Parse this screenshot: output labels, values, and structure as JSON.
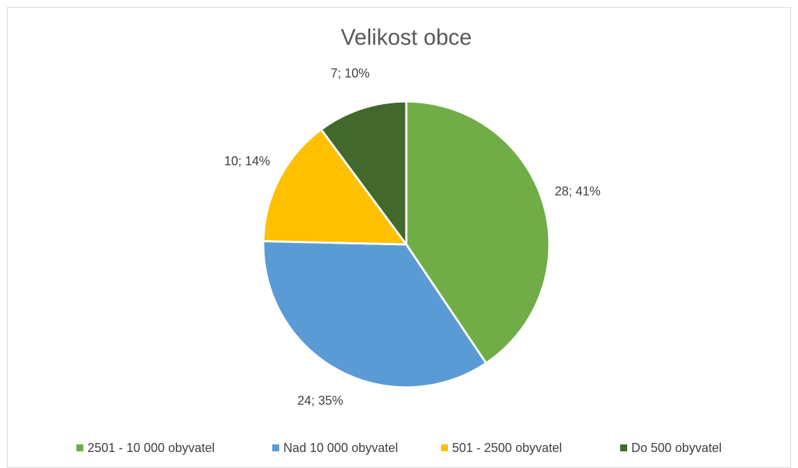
{
  "chart_data": {
    "type": "pie",
    "title": "Velikost obce",
    "categories": [
      "2501 - 10 000 obyvatel",
      "Nad 10 000 obyvatel",
      "501 - 2500 obyvatel",
      "Do 500 obyvatel"
    ],
    "values": [
      28,
      24,
      10,
      7
    ],
    "value_labels": [
      "28; 41%",
      "24; 35%",
      "10; 14%",
      "7; 10%"
    ],
    "colors": [
      "#70ad47",
      "#5b9bd5",
      "#ffc000",
      "#43682b"
    ],
    "legend": "bottom"
  }
}
